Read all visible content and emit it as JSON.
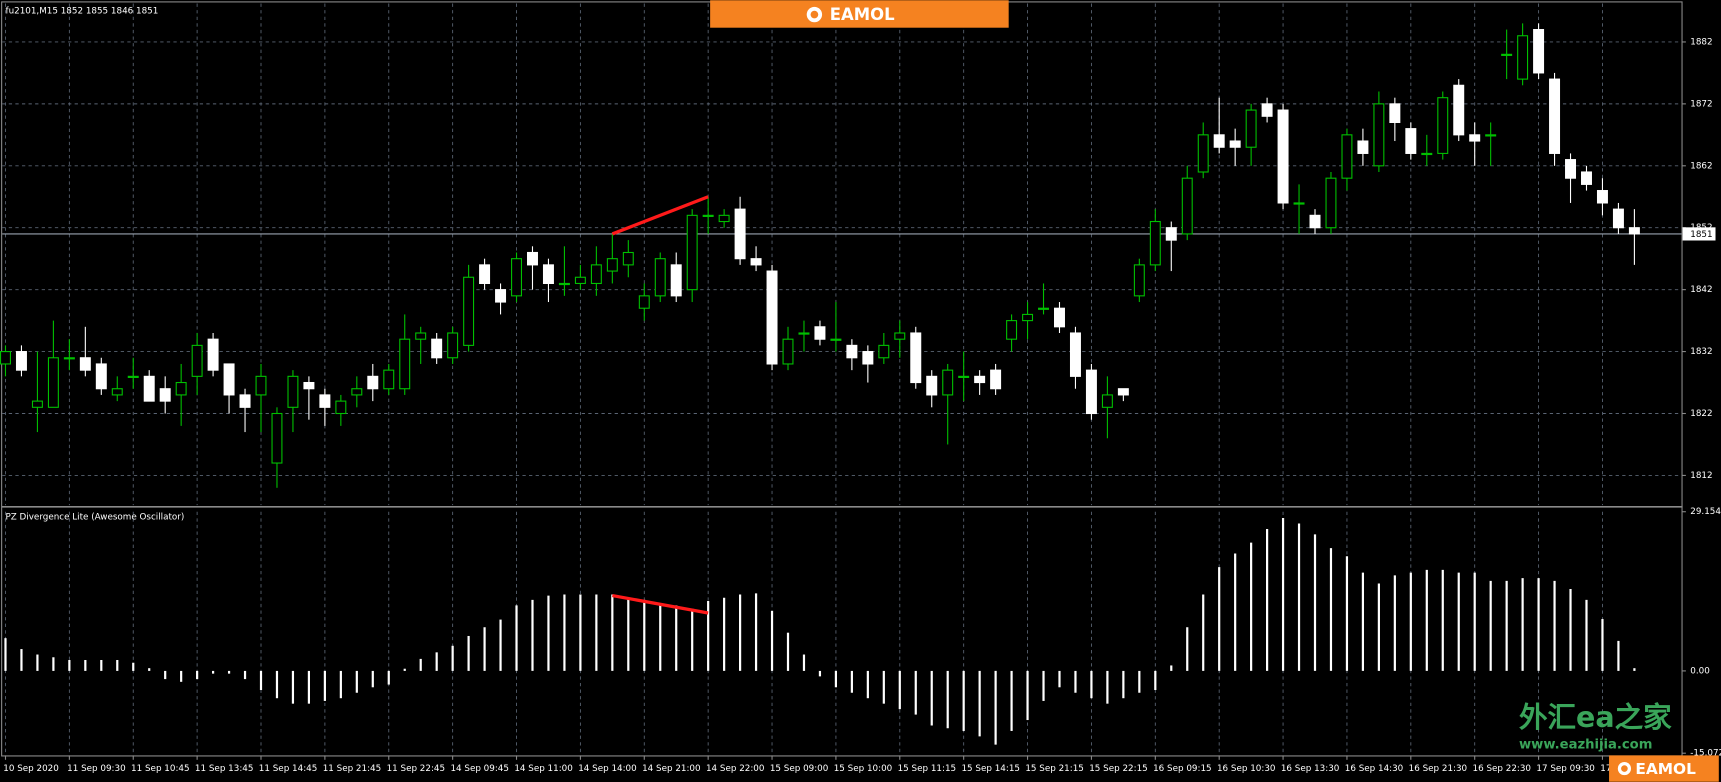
{
  "chart_data": [
    {
      "type": "candlestick",
      "title": "fu2101,M15  1852 1855 1846 1851",
      "categories": [
        "10 Sep 2020",
        null,
        null,
        null,
        "11 Sep 09:30",
        null,
        null,
        null,
        "11 Sep 10:45",
        null,
        null,
        null,
        "11 Sep 13:45",
        null,
        null,
        null,
        "11 Sep 14:45",
        null,
        null,
        null,
        "11 Sep 21:45",
        null,
        null,
        null,
        "11 Sep 22:45",
        null,
        null,
        null,
        "14 Sep 09:45",
        null,
        null,
        null,
        "14 Sep 11:00",
        null,
        null,
        null,
        "14 Sep 14:00",
        null,
        null,
        null,
        "14 Sep 21:00",
        null,
        null,
        null,
        "14 Sep 22:00",
        null,
        null,
        null,
        "15 Sep 09:00",
        null,
        null,
        null,
        "15 Sep 10:00",
        null,
        null,
        null,
        "15 Sep 11:15",
        null,
        null,
        null,
        "15 Sep 14:15",
        null,
        null,
        null,
        "15 Sep 21:15",
        null,
        null,
        null,
        "15 Sep 22:15",
        null,
        null,
        null,
        "16 Sep 09:15",
        null,
        null,
        null,
        "16 Sep 10:30",
        null,
        null,
        null,
        "16 Sep 13:30",
        null,
        null,
        null,
        "16 Sep 14:30",
        null,
        null,
        null,
        "16 Sep 21:30",
        null,
        null,
        null,
        "16 Sep 22:30",
        null,
        null,
        null,
        "17 Sep 09:30",
        null,
        null,
        null,
        "17",
        null,
        null
      ],
      "open": [
        1830,
        1832,
        1823,
        1823,
        1831,
        1831,
        1830,
        1825,
        1828,
        1828,
        1826,
        1825,
        1828,
        1834,
        1830,
        1825,
        1825,
        1814,
        1823,
        1827,
        1825,
        1822,
        1825,
        1828,
        1826,
        1826,
        1834,
        1834,
        1831,
        1833,
        1846,
        1842,
        1841,
        1848,
        1846,
        1843,
        1843,
        1843,
        1845,
        1846,
        1839,
        1841,
        1846,
        1842,
        1854,
        1853,
        1855,
        1847,
        1845,
        1830,
        1835,
        1836,
        1834,
        1833,
        1832,
        1831,
        1834,
        1835,
        1828,
        1825,
        1828,
        1828,
        1829,
        1834,
        1837,
        1839,
        1839,
        1835,
        1829,
        1823,
        1826,
        1841,
        1846,
        1852,
        1851,
        1861,
        1867,
        1866,
        1865,
        1872,
        1871,
        1856,
        1854,
        1852,
        1860,
        1866,
        1862,
        1872,
        1868,
        1864,
        1864,
        1875,
        1867,
        1867,
        1880,
        1876,
        1884,
        1876,
        1863,
        1861,
        1858,
        1855,
        1852
      ],
      "high": [
        1833,
        1833,
        1832,
        1837,
        1834,
        1836,
        1831,
        1828,
        1831,
        1829,
        1828,
        1830,
        1835,
        1835,
        1830,
        1826,
        1830,
        1823,
        1829,
        1828,
        1826,
        1825,
        1828,
        1830,
        1830,
        1838,
        1836,
        1835,
        1836,
        1846,
        1847,
        1843,
        1848,
        1849,
        1847,
        1849,
        1846,
        1849,
        1851,
        1850,
        1843,
        1848,
        1848,
        1855,
        1857,
        1855,
        1857,
        1849,
        1846,
        1836,
        1837,
        1837,
        1840,
        1834,
        1833,
        1835,
        1837,
        1836,
        1829,
        1830,
        1832,
        1829,
        1830,
        1838,
        1840,
        1843,
        1840,
        1836,
        1830,
        1828,
        1826,
        1847,
        1855,
        1853,
        1862,
        1869,
        1873,
        1868,
        1872,
        1873,
        1872,
        1859,
        1855,
        1861,
        1868,
        1868,
        1874,
        1873,
        1869,
        1867,
        1874,
        1876,
        1869,
        1869,
        1884,
        1885,
        1885,
        1877,
        1864,
        1862,
        1860,
        1856,
        1855
      ],
      "low": [
        1828,
        1828,
        1819,
        1823,
        1829,
        1828,
        1825,
        1824,
        1826,
        1824,
        1822,
        1820,
        1825,
        1828,
        1822,
        1819,
        1819,
        1810,
        1819,
        1821,
        1820,
        1820,
        1823,
        1824,
        1825,
        1825,
        1830,
        1830,
        1830,
        1832,
        1842,
        1838,
        1840,
        1842,
        1840,
        1841,
        1842,
        1841,
        1843,
        1844,
        1837,
        1840,
        1840,
        1840,
        1851,
        1852,
        1846,
        1845,
        1829,
        1829,
        1832,
        1833,
        1832,
        1829,
        1827,
        1830,
        1831,
        1826,
        1823,
        1817,
        1824,
        1825,
        1825,
        1832,
        1834,
        1838,
        1835,
        1826,
        1821,
        1818,
        1824,
        1840,
        1845,
        1845,
        1850,
        1860,
        1864,
        1862,
        1862,
        1869,
        1855,
        1851,
        1851,
        1851,
        1858,
        1862,
        1861,
        1866,
        1863,
        1862,
        1863,
        1866,
        1862,
        1862,
        1876,
        1875,
        1876,
        1862,
        1856,
        1858,
        1854,
        1851,
        1846
      ],
      "close": [
        1832,
        1829,
        1824,
        1831,
        1831,
        1829,
        1826,
        1826,
        1828,
        1824,
        1824,
        1827,
        1833,
        1829,
        1825,
        1823,
        1828,
        1822,
        1828,
        1826,
        1823,
        1824,
        1826,
        1826,
        1829,
        1834,
        1835,
        1831,
        1835,
        1844,
        1843,
        1840,
        1847,
        1846,
        1843,
        1843,
        1844,
        1846,
        1847,
        1848,
        1841,
        1847,
        1841,
        1854,
        1854,
        1854,
        1847,
        1846,
        1830,
        1834,
        1835,
        1834,
        1834,
        1831,
        1830,
        1833,
        1835,
        1827,
        1825,
        1829,
        1828,
        1827,
        1826,
        1837,
        1838,
        1839,
        1836,
        1828,
        1822,
        1825,
        1825,
        1846,
        1853,
        1850,
        1860,
        1867,
        1865,
        1865,
        1871,
        1870,
        1856,
        1856,
        1852,
        1860,
        1867,
        1864,
        1872,
        1869,
        1864,
        1864,
        1873,
        1867,
        1866,
        1867,
        1880,
        1883,
        1877,
        1864,
        1860,
        1859,
        1856,
        1852,
        1851
      ],
      "up_color": "#00c000",
      "down_color": "#ffffff",
      "ylim": [
        1807.2,
        1888.2
      ],
      "yticks": [
        1882,
        1872,
        1862,
        1852,
        1842,
        1832,
        1822,
        1812
      ],
      "current_price": 1851,
      "divergence": {
        "x": [
          38,
          44
        ],
        "values": [
          1851,
          1857
        ],
        "color": "#ff1a1a"
      },
      "grid": true
    },
    {
      "type": "bar",
      "title": "PZ Divergence Lite (Awesome Oscillator)",
      "values": [
        6,
        4,
        3,
        2.5,
        2,
        2,
        2,
        2,
        1.5,
        0.5,
        -1.5,
        -2,
        -1.5,
        -0.5,
        -0.5,
        -1.5,
        -3.5,
        -5,
        -6,
        -6,
        -5.5,
        -5,
        -4,
        -3,
        -2.5,
        0.4,
        2.2,
        3.4,
        4.6,
        6.4,
        8,
        9.4,
        12,
        13,
        13.8,
        14,
        14,
        14,
        14,
        13.4,
        13,
        12.4,
        12,
        11.4,
        12.8,
        13.4,
        14,
        14.2,
        11,
        7,
        3,
        -1,
        -3,
        -4,
        -5,
        -6,
        -7,
        -8,
        -10,
        -10.5,
        -11,
        -12,
        -13.5,
        -11,
        -9,
        -5.5,
        -3,
        -4,
        -5,
        -6,
        -5,
        -4,
        -3.5,
        1,
        8,
        14,
        19,
        21.5,
        23.5,
        26,
        28,
        27,
        25,
        22.5,
        21,
        18,
        16,
        17.5,
        18,
        18.5,
        18.5,
        18,
        18,
        16.5,
        16.5,
        17,
        17,
        16.5,
        15,
        13,
        9.5,
        5.5,
        0.5
      ],
      "color": "#ffffff",
      "ylim": [
        -15.0721,
        29.1544
      ],
      "yticks": [
        29.1544,
        {
          "value": 0,
          "label": "0.00"
        },
        -15.0721
      ],
      "divergence": {
        "x": [
          38,
          44
        ],
        "values": [
          13.8,
          10.6
        ],
        "color": "#ff1a1a"
      },
      "grid": true
    }
  ],
  "branding": {
    "logo": "EAMOL",
    "site_name": "外汇ea之家",
    "site_url": "www.eazhijia.com"
  }
}
